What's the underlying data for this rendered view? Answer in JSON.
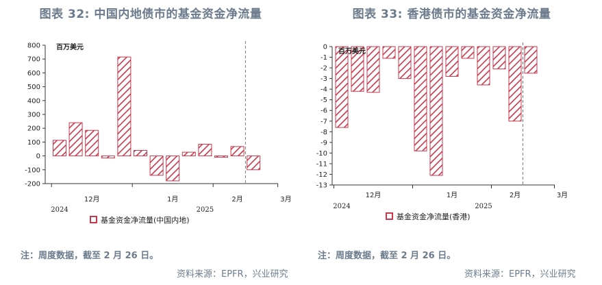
{
  "colors": {
    "bar_stroke": "#c8374b",
    "title": "#6b7b8c"
  },
  "left": {
    "title": "图表 32: 中国内地债市的基金资金净流量",
    "note": "注：周度数据，截至 2 月 26 日。",
    "source": "资料来源：EPFR，兴业研究"
  },
  "right": {
    "title": "图表 33: 香港债市的基金资金净流量",
    "note": "注：周度数据，截至 2 月 26 日。",
    "source": "资料来源：EPFR，兴业研究"
  },
  "chart_data": [
    {
      "type": "bar",
      "unit": "百万美元",
      "series": [
        {
          "name": "基金资金净流量(中国内地)",
          "values": [
            113,
            240,
            185,
            -15,
            715,
            40,
            -140,
            -180,
            27,
            85,
            -10,
            68,
            -100
          ]
        }
      ],
      "ylim": [
        -200,
        800
      ],
      "yticks": [
        800,
        700,
        600,
        500,
        400,
        300,
        200,
        100,
        0,
        -100,
        -200
      ],
      "month_labels": [
        {
          "label": "12月",
          "at": 2
        },
        {
          "label": "1月",
          "at": 7
        },
        {
          "label": "2月",
          "at": 11
        },
        {
          "label": "3月",
          "at": 14
        }
      ],
      "year_labels": [
        {
          "label": "2024",
          "at": 0
        },
        {
          "label": "2025",
          "at": 9
        }
      ],
      "dashed_line_after": 11.5,
      "legend_position": "bottom-center"
    },
    {
      "type": "bar",
      "unit": "百万美元",
      "series": [
        {
          "name": "基金资金净流量(香港)",
          "values": [
            -7.6,
            -4.2,
            -4.3,
            -1.1,
            -3.0,
            -9.8,
            -12.1,
            -2.8,
            -1.1,
            -3.6,
            -2.1,
            -7.0,
            -2.5
          ]
        }
      ],
      "ylim": [
        -13,
        0
      ],
      "yticks": [
        0,
        -1,
        -2,
        -3,
        -4,
        -5,
        -6,
        -7,
        -8,
        -9,
        -10,
        -11,
        -12,
        -13
      ],
      "month_labels": [
        {
          "label": "12月",
          "at": 2
        },
        {
          "label": "1月",
          "at": 7
        },
        {
          "label": "2月",
          "at": 11
        },
        {
          "label": "3月",
          "at": 14
        }
      ],
      "year_labels": [
        {
          "label": "2024",
          "at": 0
        },
        {
          "label": "2025",
          "at": 9
        }
      ],
      "dashed_line_after": 11.5,
      "legend_position": "bottom-center"
    }
  ]
}
